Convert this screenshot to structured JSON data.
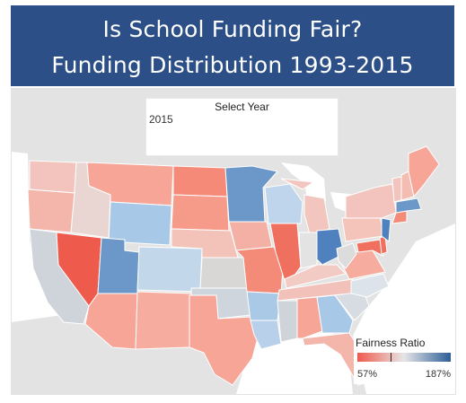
{
  "title": {
    "line1": "Is School Funding Fair?",
    "line2": "Funding Distribution 1993-2015"
  },
  "filter": {
    "label": "Select Year",
    "value": "2015"
  },
  "legend": {
    "title": "Fairness Ratio",
    "min_label": "57%",
    "max_label": "187%",
    "colors": {
      "low": "#f0584d",
      "mid": "#e6e6e6",
      "high": "#2b5d97"
    }
  },
  "map": {
    "land_color": "#d9d9d9",
    "water_color": "#ffffff",
    "states": [
      {
        "id": "WA",
        "color": "#f3c4bd"
      },
      {
        "id": "OR",
        "color": "#f4b5ab"
      },
      {
        "id": "CA",
        "color": "#cfd3da"
      },
      {
        "id": "NV",
        "color": "#ee5a4b"
      },
      {
        "id": "ID",
        "color": "#e9d6d2"
      },
      {
        "id": "MT",
        "color": "#f6a597"
      },
      {
        "id": "WY",
        "color": "#a7c8e6"
      },
      {
        "id": "UT",
        "color": "#6b98c8"
      },
      {
        "id": "AZ",
        "color": "#f6a597"
      },
      {
        "id": "CO",
        "color": "#c3d7ea"
      },
      {
        "id": "NM",
        "color": "#f6ad9f"
      },
      {
        "id": "ND",
        "color": "#f58a78"
      },
      {
        "id": "SD",
        "color": "#f69b89"
      },
      {
        "id": "NE",
        "color": "#f3c2b9"
      },
      {
        "id": "KS",
        "color": "#d9d6d6"
      },
      {
        "id": "OK",
        "color": "#cfd5dd"
      },
      {
        "id": "TX",
        "color": "#f6a597"
      },
      {
        "id": "MN",
        "color": "#6b98c8"
      },
      {
        "id": "IA",
        "color": "#f4b0a4"
      },
      {
        "id": "MO",
        "color": "#f48b79"
      },
      {
        "id": "AR",
        "color": "#a9c9e6"
      },
      {
        "id": "LA",
        "color": "#b8d0ea"
      },
      {
        "id": "WI",
        "color": "#bfd5eb"
      },
      {
        "id": "IL",
        "color": "#f07060"
      },
      {
        "id": "MI",
        "color": "#f2c6bf"
      },
      {
        "id": "IN",
        "color": "#e3e3e3"
      },
      {
        "id": "OH",
        "color": "#4f81bf"
      },
      {
        "id": "KY",
        "color": "#f1cbc4"
      },
      {
        "id": "TN",
        "color": "#f2c2ba"
      },
      {
        "id": "MS",
        "color": "#cfd3da"
      },
      {
        "id": "AL",
        "color": "#f6a597"
      },
      {
        "id": "GA",
        "color": "#a7c8e6"
      },
      {
        "id": "FL",
        "color": "#f4b5ab"
      },
      {
        "id": "SC",
        "color": "#d7dbe2"
      },
      {
        "id": "NC",
        "color": "#dde3ea"
      },
      {
        "id": "VA",
        "color": "#f6ad9f"
      },
      {
        "id": "WV",
        "color": "#dcdcdc"
      },
      {
        "id": "PA",
        "color": "#f4c4bb"
      },
      {
        "id": "NY",
        "color": "#f3c4bd"
      },
      {
        "id": "ME",
        "color": "#f6a597"
      },
      {
        "id": "NH",
        "color": "#f4bdb2"
      },
      {
        "id": "VT",
        "color": "#f3c4bd"
      },
      {
        "id": "MA",
        "color": "#6b98c8"
      },
      {
        "id": "CT",
        "color": "#f48b79"
      },
      {
        "id": "NJ",
        "color": "#4f81bf"
      },
      {
        "id": "DE",
        "color": "#f07060"
      },
      {
        "id": "MD",
        "color": "#f07060"
      }
    ]
  }
}
